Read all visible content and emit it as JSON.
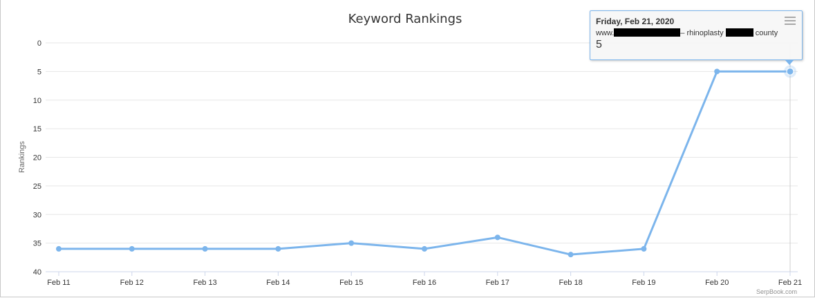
{
  "chart_data": {
    "type": "line",
    "title": "Keyword Rankings",
    "ylabel": "Rankings",
    "xlabel": "",
    "categories": [
      "Feb 11",
      "Feb 12",
      "Feb 13",
      "Feb 14",
      "Feb 15",
      "Feb 16",
      "Feb 17",
      "Feb 18",
      "Feb 19",
      "Feb 20",
      "Feb 21"
    ],
    "series": [
      {
        "values": [
          36,
          36,
          36,
          36,
          35,
          36,
          34,
          37,
          36,
          5,
          5
        ]
      }
    ],
    "ylim": [
      0,
      40
    ],
    "yticks": [
      0,
      5,
      10,
      15,
      20,
      25,
      30,
      35,
      40
    ],
    "y_reversed": true,
    "grid": "horizontal",
    "color": "#7cb5ec",
    "credit": "SerpBook.com"
  },
  "tooltip": {
    "date": "Friday, Feb 21, 2020",
    "site_prefix": "www.",
    "keyword_middle": "– rhinoplasty",
    "keyword_end": "county",
    "value": "5"
  },
  "menu": {
    "icon": "hamburger-menu-icon"
  }
}
